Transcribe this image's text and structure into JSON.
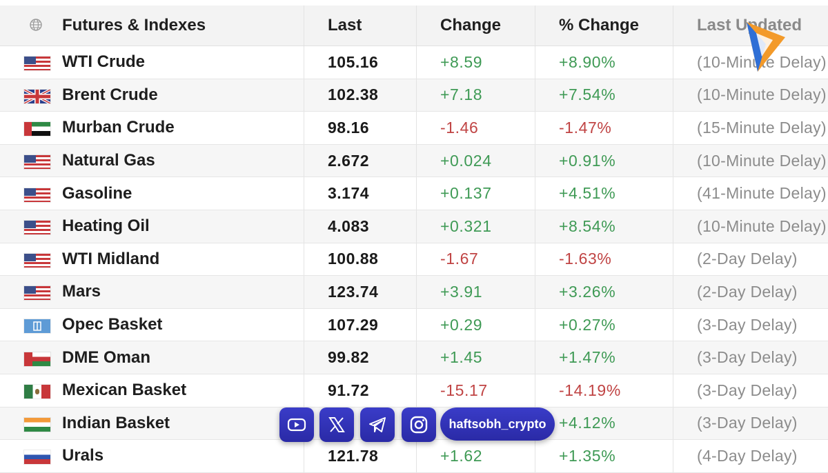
{
  "header": {
    "name": "Futures & Indexes",
    "last": "Last",
    "change": "Change",
    "pct_change": "% Change",
    "last_updated": "Last Updated"
  },
  "rows": [
    {
      "name": "WTI Crude",
      "flag": "us",
      "last": "105.16",
      "change": "+8.59",
      "pct": "+8.90%",
      "updated": "(10-Minute Delay)",
      "dir": "pos"
    },
    {
      "name": "Brent Crude",
      "flag": "uk",
      "last": "102.38",
      "change": "+7.18",
      "pct": "+7.54%",
      "updated": "(10-Minute Delay)",
      "dir": "pos"
    },
    {
      "name": "Murban Crude",
      "flag": "ae",
      "last": "98.16",
      "change": "-1.46",
      "pct": "-1.47%",
      "updated": "(15-Minute Delay)",
      "dir": "neg"
    },
    {
      "name": "Natural Gas",
      "flag": "us",
      "last": "2.672",
      "change": "+0.024",
      "pct": "+0.91%",
      "updated": "(10-Minute Delay)",
      "dir": "pos"
    },
    {
      "name": "Gasoline",
      "flag": "us",
      "last": "3.174",
      "change": "+0.137",
      "pct": "+4.51%",
      "updated": "(41-Minute Delay)",
      "dir": "pos"
    },
    {
      "name": "Heating Oil",
      "flag": "us",
      "last": "4.083",
      "change": "+0.321",
      "pct": "+8.54%",
      "updated": "(10-Minute Delay)",
      "dir": "pos"
    },
    {
      "name": "WTI Midland",
      "flag": "us",
      "last": "100.88",
      "change": "-1.67",
      "pct": "-1.63%",
      "updated": "(2-Day Delay)",
      "dir": "neg"
    },
    {
      "name": "Mars",
      "flag": "us",
      "last": "123.74",
      "change": "+3.91",
      "pct": "+3.26%",
      "updated": "(2-Day Delay)",
      "dir": "pos"
    },
    {
      "name": "Opec Basket",
      "flag": "opec",
      "last": "107.29",
      "change": "+0.29",
      "pct": "+0.27%",
      "updated": "(3-Day Delay)",
      "dir": "pos"
    },
    {
      "name": "DME Oman",
      "flag": "om",
      "last": "99.82",
      "change": "+1.45",
      "pct": "+1.47%",
      "updated": "(3-Day Delay)",
      "dir": "pos"
    },
    {
      "name": "Mexican Basket",
      "flag": "mx",
      "last": "91.72",
      "change": "-15.17",
      "pct": "-14.19%",
      "updated": "(3-Day Delay)",
      "dir": "neg"
    },
    {
      "name": "Indian Basket",
      "flag": "in",
      "last": "",
      "change": "",
      "pct": "+4.12%",
      "updated": "(3-Day Delay)",
      "dir": "pos"
    },
    {
      "name": "Urals",
      "flag": "ru",
      "last": "121.78",
      "change": "+1.62",
      "pct": "+1.35%",
      "updated": "(4-Day Delay)",
      "dir": "pos"
    }
  ],
  "social": {
    "handle": "haftsobh_crypto",
    "icons": [
      "youtube-icon",
      "x-icon",
      "telegram-icon",
      "instagram-icon"
    ]
  },
  "colors": {
    "positive": "#3f9a55",
    "negative": "#c04444",
    "overlay": "#3a3cc8",
    "logo_orange": "#f39a2a",
    "logo_blue": "#2f6fd6"
  }
}
